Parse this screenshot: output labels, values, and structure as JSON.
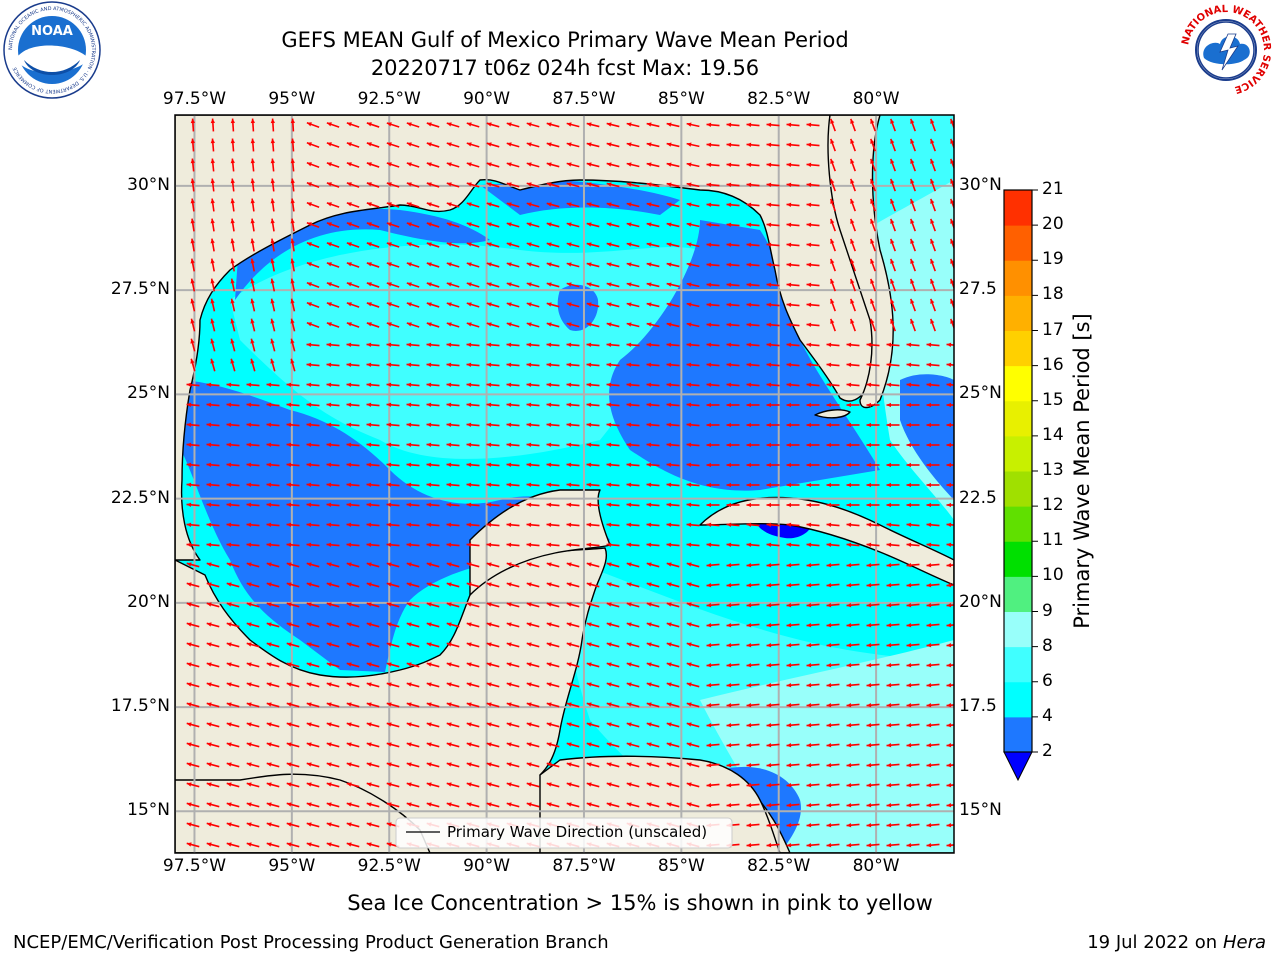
{
  "header": {
    "title_line1": "GEFS MEAN Gulf of Mexico Primary Wave Mean Period",
    "title_line2": "20220717 t06z 024h fcst   Max: 19.56"
  },
  "logos": {
    "left": "noaa-logo",
    "right": "national-weather-service-logo",
    "left_ring_text": "NATIONAL OCEANIC AND ATMOSPHERIC ADMINISTRATION · U.S. DEPARTMENT OF COMMERCE",
    "left_center_text": "NOAA",
    "right_ring_text": "NATIONAL WEATHER SERVICE"
  },
  "map": {
    "lon_labels": [
      "97.5°W",
      "95°W",
      "92.5°W",
      "90°W",
      "87.5°W",
      "85°W",
      "82.5°W",
      "80°W"
    ],
    "lon_values": [
      -97.5,
      -95,
      -92.5,
      -90,
      -87.5,
      -85,
      -82.5,
      -80
    ],
    "lat_labels_left": [
      "30°N",
      "27.5°N",
      "25°N",
      "22.5°N",
      "20°N",
      "17.5°N",
      "15°N"
    ],
    "lat_labels_right": [
      "30°N",
      "27.5",
      "25°N",
      "22.5",
      "20°N",
      "17.5",
      "15°N"
    ],
    "lat_values": [
      30,
      27.5,
      25,
      22.5,
      20,
      17.5,
      15
    ],
    "extent": {
      "lon_min": -98,
      "lon_max": -78,
      "lat_min": 14,
      "lat_max": 31.7
    },
    "legend_label": "Primary Wave Direction (unscaled)",
    "colors": {
      "land": "#efecdc",
      "coast": "#000000",
      "grid": "#b0b0b0",
      "arrow": "#ff0000",
      "period_2_4": "#1e78ff",
      "period_4_6": "#00ffff",
      "period_6_8": "#40ffff",
      "period_8_9": "#98fffa",
      "period_below_2": "#0000ff",
      "period_20_21": "#ff2000"
    }
  },
  "colorbar": {
    "label": "Primary Wave Mean Period [s]",
    "ticks": [
      "2",
      "4",
      "6",
      "8",
      "9",
      "10",
      "11",
      "12",
      "13",
      "14",
      "15",
      "16",
      "17",
      "18",
      "19",
      "20",
      "21"
    ],
    "colors": [
      "#1e78ff",
      "#00ffff",
      "#40ffff",
      "#98fffa",
      "#50f080",
      "#00e000",
      "#60e000",
      "#a0e000",
      "#c8f000",
      "#e8f000",
      "#ffff00",
      "#ffd000",
      "#ffb000",
      "#ff9000",
      "#ff6000",
      "#ff3000"
    ],
    "extend_color": "#0000ff"
  },
  "footer": {
    "ice_note": "Sea Ice Concentration > 15% is shown in pink to yellow",
    "credit": "NCEP/EMC/Verification Post Processing Product Generation Branch",
    "date": "19 Jul 2022 on ",
    "machine": "Hera"
  }
}
